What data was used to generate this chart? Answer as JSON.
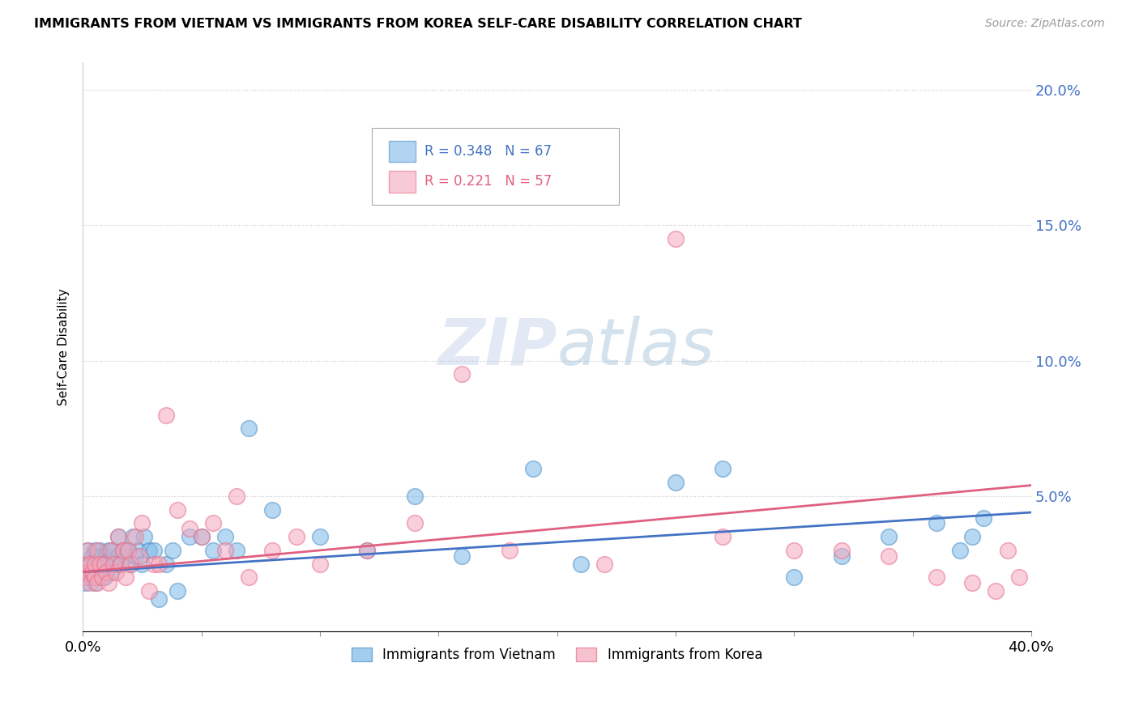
{
  "title": "IMMIGRANTS FROM VIETNAM VS IMMIGRANTS FROM KOREA SELF-CARE DISABILITY CORRELATION CHART",
  "source": "Source: ZipAtlas.com",
  "ylabel": "Self-Care Disability",
  "xlim": [
    0.0,
    0.4
  ],
  "ylim": [
    0.0,
    0.21
  ],
  "xticks": [
    0.0,
    0.05,
    0.1,
    0.15,
    0.2,
    0.25,
    0.3,
    0.35,
    0.4
  ],
  "yticks": [
    0.0,
    0.05,
    0.1,
    0.15,
    0.2
  ],
  "ytick_labels": [
    "",
    "5.0%",
    "10.0%",
    "15.0%",
    "20.0%"
  ],
  "vietnam_color": "#7db8e8",
  "korea_color": "#f4a8bc",
  "vietnam_edge_color": "#5090c8",
  "korea_edge_color": "#e8708a",
  "vietnam_trend_color": "#4472c4",
  "korea_trend_color": "#e06080",
  "vietnam_R": 0.348,
  "vietnam_N": 67,
  "korea_R": 0.221,
  "korea_N": 57,
  "legend_label_vietnam": "Immigrants from Vietnam",
  "legend_label_korea": "Immigrants from Korea",
  "right_tick_color": "#4472c4",
  "vietnam_x": [
    0.001,
    0.001,
    0.002,
    0.002,
    0.003,
    0.003,
    0.004,
    0.004,
    0.005,
    0.005,
    0.005,
    0.006,
    0.006,
    0.007,
    0.007,
    0.008,
    0.008,
    0.009,
    0.009,
    0.01,
    0.01,
    0.011,
    0.011,
    0.012,
    0.013,
    0.013,
    0.014,
    0.015,
    0.015,
    0.016,
    0.017,
    0.018,
    0.019,
    0.02,
    0.021,
    0.022,
    0.023,
    0.025,
    0.026,
    0.028,
    0.03,
    0.032,
    0.035,
    0.038,
    0.04,
    0.045,
    0.05,
    0.055,
    0.06,
    0.065,
    0.07,
    0.08,
    0.1,
    0.12,
    0.14,
    0.16,
    0.19,
    0.21,
    0.25,
    0.27,
    0.3,
    0.32,
    0.34,
    0.36,
    0.37,
    0.375,
    0.38
  ],
  "vietnam_y": [
    0.018,
    0.022,
    0.025,
    0.03,
    0.02,
    0.025,
    0.022,
    0.028,
    0.018,
    0.022,
    0.03,
    0.02,
    0.025,
    0.022,
    0.03,
    0.025,
    0.028,
    0.02,
    0.025,
    0.022,
    0.028,
    0.025,
    0.03,
    0.022,
    0.025,
    0.03,
    0.025,
    0.028,
    0.035,
    0.025,
    0.03,
    0.028,
    0.03,
    0.025,
    0.035,
    0.028,
    0.03,
    0.025,
    0.035,
    0.03,
    0.03,
    0.012,
    0.025,
    0.03,
    0.015,
    0.035,
    0.035,
    0.03,
    0.035,
    0.03,
    0.075,
    0.045,
    0.035,
    0.03,
    0.05,
    0.028,
    0.06,
    0.025,
    0.055,
    0.06,
    0.02,
    0.028,
    0.035,
    0.04,
    0.03,
    0.035,
    0.042
  ],
  "korea_x": [
    0.001,
    0.001,
    0.002,
    0.002,
    0.003,
    0.003,
    0.004,
    0.005,
    0.005,
    0.006,
    0.006,
    0.007,
    0.008,
    0.009,
    0.01,
    0.011,
    0.012,
    0.013,
    0.014,
    0.015,
    0.016,
    0.017,
    0.018,
    0.019,
    0.02,
    0.022,
    0.024,
    0.025,
    0.028,
    0.03,
    0.032,
    0.035,
    0.04,
    0.045,
    0.05,
    0.055,
    0.06,
    0.065,
    0.07,
    0.08,
    0.09,
    0.1,
    0.12,
    0.14,
    0.16,
    0.18,
    0.22,
    0.25,
    0.27,
    0.3,
    0.32,
    0.34,
    0.36,
    0.375,
    0.385,
    0.39,
    0.395
  ],
  "korea_y": [
    0.02,
    0.025,
    0.022,
    0.03,
    0.018,
    0.025,
    0.022,
    0.02,
    0.025,
    0.018,
    0.03,
    0.025,
    0.02,
    0.025,
    0.022,
    0.018,
    0.03,
    0.025,
    0.022,
    0.035,
    0.025,
    0.03,
    0.02,
    0.03,
    0.025,
    0.035,
    0.028,
    0.04,
    0.015,
    0.025,
    0.025,
    0.08,
    0.045,
    0.038,
    0.035,
    0.04,
    0.03,
    0.05,
    0.02,
    0.03,
    0.035,
    0.025,
    0.03,
    0.04,
    0.095,
    0.03,
    0.025,
    0.145,
    0.035,
    0.03,
    0.03,
    0.028,
    0.02,
    0.018,
    0.015,
    0.03,
    0.02
  ],
  "vietnam_trend_x0": 0.0,
  "vietnam_trend_y0": 0.022,
  "vietnam_trend_x1": 0.4,
  "vietnam_trend_y1": 0.044,
  "korea_trend_x0": 0.0,
  "korea_trend_y0": 0.022,
  "korea_trend_x1": 0.4,
  "korea_trend_y1": 0.054
}
